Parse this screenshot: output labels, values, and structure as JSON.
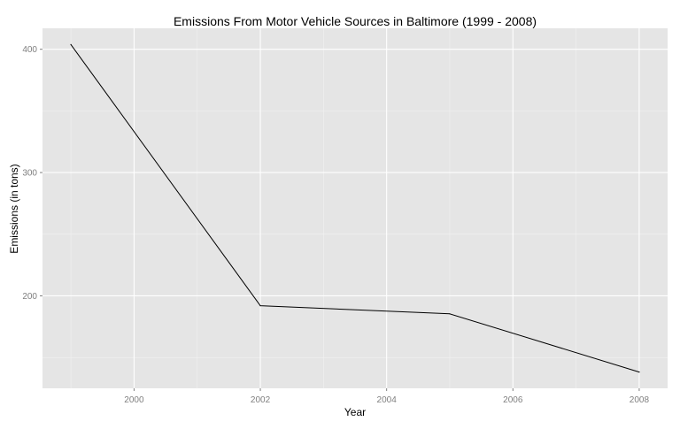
{
  "chart_data": {
    "type": "line",
    "title": "Emissions From Motor Vehicle Sources in Baltimore (1999 - 2008)",
    "xlabel": "Year",
    "ylabel": "Emissions (in tons)",
    "x": [
      1999,
      2002,
      2005,
      2008
    ],
    "series": [
      {
        "values": [
          403.8,
          192.0,
          185.4,
          138.2
        ]
      }
    ],
    "xlim": [
      1998.55,
      2008.45
    ],
    "ylim": [
      125,
      417
    ],
    "xticks": [
      2000,
      2002,
      2004,
      2006,
      2008
    ],
    "xtick_labels": [
      "2000",
      "2002",
      "2004",
      "2006",
      "2008"
    ],
    "yticks": [
      200,
      300,
      400
    ],
    "ytick_labels": [
      "200",
      "300",
      "400"
    ],
    "grid": true,
    "legend": "none",
    "colors": {
      "panel": "#e5e5e5",
      "grid_major": "#ffffff",
      "grid_minor": "#f2f2f2",
      "line": "#000000",
      "tick_text": "#7f7f7f"
    }
  }
}
